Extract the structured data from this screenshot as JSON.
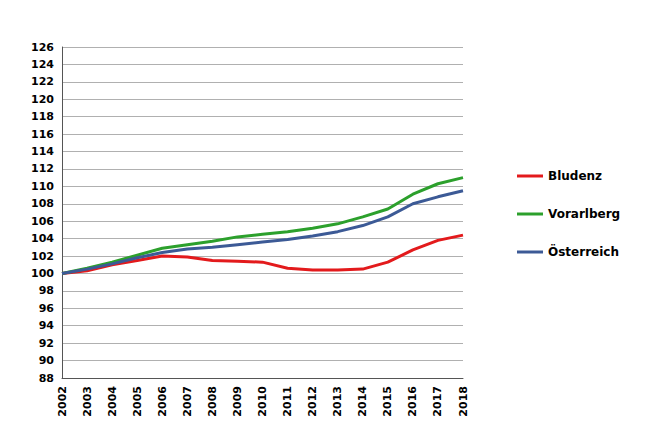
{
  "chart_data": {
    "type": "line",
    "categories": [
      "2002",
      "2003",
      "2004",
      "2005",
      "2006",
      "2007",
      "2008",
      "2009",
      "2010",
      "2011",
      "2012",
      "2013",
      "2014",
      "2015",
      "2016",
      "2017",
      "2018"
    ],
    "series": [
      {
        "name": "Bludenz",
        "color": "#e31a1c",
        "values": [
          100,
          100.3,
          101.0,
          101.5,
          102.0,
          101.9,
          101.5,
          101.4,
          101.3,
          100.6,
          100.4,
          100.4,
          100.5,
          101.3,
          102.7,
          103.8,
          104.4
        ]
      },
      {
        "name": "Vorarlberg",
        "color": "#2ca02c",
        "values": [
          100,
          100.6,
          101.3,
          102.1,
          102.9,
          103.3,
          103.7,
          104.2,
          104.5,
          104.8,
          105.2,
          105.7,
          106.5,
          107.4,
          109.1,
          110.3,
          111.0
        ]
      },
      {
        "name": "Österreich",
        "color": "#3c5a96",
        "values": [
          100,
          100.5,
          101.1,
          101.8,
          102.4,
          102.8,
          103.0,
          103.3,
          103.6,
          103.9,
          104.3,
          104.8,
          105.5,
          106.5,
          108.0,
          108.8,
          109.5
        ]
      }
    ],
    "ylim": [
      88,
      126
    ],
    "yticks": [
      88,
      90,
      92,
      94,
      96,
      98,
      100,
      102,
      104,
      106,
      108,
      110,
      112,
      114,
      116,
      118,
      120,
      122,
      124,
      126
    ],
    "grid": true,
    "legend": "right"
  }
}
